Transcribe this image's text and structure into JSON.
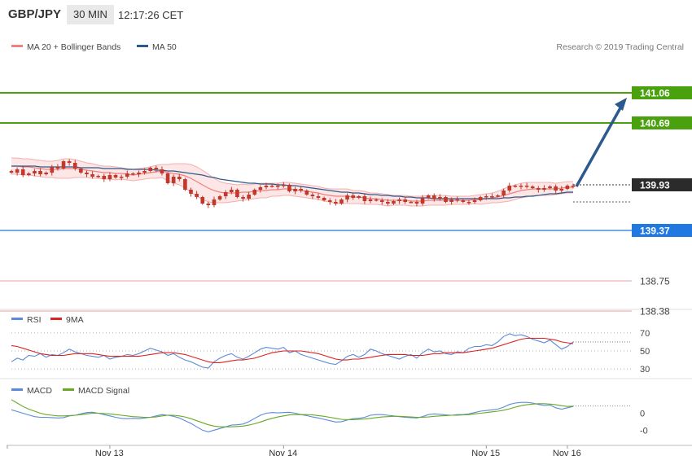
{
  "header": {
    "symbol": "GBP/JPY",
    "timeframe": "30 MIN",
    "time": "12:17:26 CET"
  },
  "legend": {
    "bollinger": "MA 20 + Bollinger Bands",
    "ma50": "MA 50",
    "credit": "Research © 2019 Trading Central",
    "rsi": "RSI",
    "rsi_ma": "9MA",
    "macd": "MACD",
    "macd_signal": "MACD Signal"
  },
  "colors": {
    "up_candle": "#c0392b",
    "down_candle": "#c0392b",
    "bollinger": "#f08080",
    "bollinger_fill": "#fde6e6",
    "ma50": "#2c5a8c",
    "resistance": "#4aa10e",
    "support": "#2178e0",
    "target": "#e04a4a",
    "arrow": "#2c5a8c",
    "rsi": "#5b8bd8",
    "rsi_ma": "#dd2222",
    "macd": "#5b8bd8",
    "macd_signal": "#66aa22"
  },
  "chart_data": [
    {
      "type": "candlestick",
      "title": "GBP/JPY",
      "x_labels": [
        "Nov 13",
        "Nov 14",
        "Nov 15",
        "Nov 16"
      ],
      "ylim": [
        138.25,
        141.2
      ],
      "current_price": 139.93,
      "levels": [
        {
          "value": 141.06,
          "label": "141.06",
          "kind": "resistance"
        },
        {
          "value": 140.69,
          "label": "140.69",
          "kind": "resistance"
        },
        {
          "value": 139.93,
          "label": "139.93",
          "kind": "current"
        },
        {
          "value": 139.37,
          "label": "139.37",
          "kind": "support"
        },
        {
          "value": 138.75,
          "label": "138.75",
          "kind": "target"
        },
        {
          "value": 138.38,
          "label": "138.38",
          "kind": "target"
        }
      ],
      "arrow": {
        "from": 139.93,
        "to": 141.06
      },
      "close": [
        140.08,
        140.12,
        140.05,
        140.07,
        140.1,
        140.06,
        140.08,
        140.15,
        140.13,
        140.22,
        140.2,
        140.13,
        140.08,
        140.06,
        140.03,
        140.04,
        140.0,
        140.05,
        140.02,
        140.03,
        140.07,
        140.06,
        140.08,
        140.1,
        140.14,
        140.12,
        140.07,
        139.95,
        140.03,
        140.0,
        139.87,
        139.82,
        139.78,
        139.7,
        139.68,
        139.75,
        139.79,
        139.84,
        139.87,
        139.78,
        139.76,
        139.81,
        139.87,
        139.9,
        139.92,
        139.91,
        139.92,
        139.93,
        139.85,
        139.88,
        139.86,
        139.81,
        139.79,
        139.77,
        139.74,
        139.72,
        139.7,
        139.75,
        139.8,
        139.77,
        139.79,
        139.73,
        139.75,
        139.74,
        139.72,
        139.7,
        139.73,
        139.75,
        139.72,
        139.72,
        139.7,
        139.77,
        139.8,
        139.76,
        139.78,
        139.72,
        139.75,
        139.74,
        139.72,
        139.72,
        139.74,
        139.78,
        139.79,
        139.79,
        139.8,
        139.86,
        139.92,
        139.91,
        139.92,
        139.91,
        139.89,
        139.87,
        139.89,
        139.91,
        139.86,
        139.88,
        139.92,
        139.92
      ],
      "bollinger_mid": [
        140.16,
        140.16,
        140.15,
        140.15,
        140.14,
        140.13,
        140.12,
        140.12,
        140.12,
        140.13,
        140.13,
        140.13,
        140.12,
        140.11,
        140.1,
        140.09,
        140.08,
        140.08,
        140.07,
        140.07,
        140.06,
        140.05,
        140.06,
        140.07,
        140.08,
        140.09,
        140.1,
        140.08,
        140.07,
        140.06,
        140.04,
        140.01,
        139.97,
        139.93,
        139.89,
        139.86,
        139.84,
        139.83,
        139.83,
        139.83,
        139.84,
        139.84,
        139.85,
        139.86,
        139.86,
        139.87,
        139.87,
        139.88,
        139.88,
        139.87,
        139.86,
        139.85,
        139.84,
        139.83,
        139.81,
        139.8,
        139.79,
        139.79,
        139.79,
        139.78,
        139.78,
        139.77,
        139.76,
        139.76,
        139.75,
        139.74,
        139.74,
        139.74,
        139.74,
        139.73,
        139.73,
        139.73,
        139.74,
        139.74,
        139.74,
        139.74,
        139.74,
        139.74,
        139.74,
        139.74,
        139.75,
        139.75,
        139.76,
        139.77,
        139.78,
        139.8,
        139.82,
        139.84,
        139.86,
        139.87,
        139.88,
        139.88,
        139.88,
        139.88,
        139.88,
        139.89,
        139.9,
        139.9
      ],
      "bollinger_width": [
        0.1,
        0.1,
        0.1,
        0.1,
        0.1,
        0.1,
        0.1,
        0.1,
        0.11,
        0.12,
        0.12,
        0.11,
        0.1,
        0.09,
        0.09,
        0.08,
        0.08,
        0.08,
        0.08,
        0.07,
        0.07,
        0.07,
        0.07,
        0.07,
        0.07,
        0.08,
        0.08,
        0.1,
        0.12,
        0.13,
        0.15,
        0.17,
        0.18,
        0.18,
        0.17,
        0.15,
        0.13,
        0.12,
        0.11,
        0.1,
        0.1,
        0.09,
        0.09,
        0.09,
        0.09,
        0.08,
        0.08,
        0.08,
        0.08,
        0.08,
        0.08,
        0.08,
        0.08,
        0.08,
        0.08,
        0.08,
        0.09,
        0.09,
        0.09,
        0.08,
        0.08,
        0.08,
        0.07,
        0.07,
        0.07,
        0.07,
        0.06,
        0.06,
        0.06,
        0.06,
        0.06,
        0.06,
        0.06,
        0.06,
        0.06,
        0.06,
        0.05,
        0.05,
        0.05,
        0.05,
        0.05,
        0.06,
        0.06,
        0.06,
        0.07,
        0.08,
        0.09,
        0.09,
        0.09,
        0.09,
        0.08,
        0.08,
        0.08,
        0.08,
        0.07,
        0.07,
        0.07,
        0.07
      ],
      "ma50": [
        140.16,
        140.16,
        140.16,
        140.16,
        140.16,
        140.15,
        140.15,
        140.15,
        140.15,
        140.15,
        140.15,
        140.15,
        140.14,
        140.14,
        140.14,
        140.14,
        140.13,
        140.13,
        140.13,
        140.13,
        140.12,
        140.12,
        140.12,
        140.12,
        140.12,
        140.11,
        140.11,
        140.1,
        140.1,
        140.09,
        140.08,
        140.07,
        140.06,
        140.05,
        140.03,
        140.02,
        140.0,
        139.99,
        139.98,
        139.97,
        139.96,
        139.95,
        139.95,
        139.94,
        139.94,
        139.94,
        139.93,
        139.93,
        139.92,
        139.92,
        139.91,
        139.9,
        139.89,
        139.88,
        139.87,
        139.86,
        139.85,
        139.84,
        139.84,
        139.83,
        139.83,
        139.82,
        139.81,
        139.81,
        139.8,
        139.8,
        139.79,
        139.79,
        139.78,
        139.78,
        139.77,
        139.77,
        139.77,
        139.76,
        139.76,
        139.76,
        139.76,
        139.76,
        139.76,
        139.76,
        139.76,
        139.76,
        139.76,
        139.76,
        139.76,
        139.77,
        139.77,
        139.78,
        139.78,
        139.79,
        139.79,
        139.8,
        139.81,
        139.82,
        139.82,
        139.83,
        139.84,
        139.84
      ]
    },
    {
      "type": "line",
      "title": "RSI",
      "ylim": [
        22,
        78
      ],
      "yticks": [
        30,
        50,
        70
      ],
      "series": [
        {
          "name": "RSI",
          "values": [
            38,
            42,
            40,
            45,
            44,
            47,
            43,
            46,
            45,
            48,
            52,
            49,
            47,
            45,
            44,
            43,
            45,
            41,
            43,
            44,
            46,
            45,
            47,
            50,
            53,
            51,
            49,
            45,
            47,
            43,
            40,
            38,
            35,
            32,
            31,
            38,
            42,
            45,
            47,
            43,
            41,
            44,
            48,
            52,
            54,
            53,
            52,
            54,
            48,
            50,
            46,
            44,
            42,
            40,
            38,
            36,
            35,
            39,
            44,
            46,
            43,
            46,
            52,
            50,
            47,
            45,
            43,
            41,
            44,
            46,
            42,
            48,
            52,
            49,
            50,
            47,
            46,
            49,
            48,
            53,
            55,
            55,
            57,
            56,
            60,
            66,
            69,
            67,
            68,
            66,
            63,
            61,
            59,
            62,
            57,
            52,
            55,
            60
          ]
        },
        {
          "name": "9MA",
          "values": [
            56,
            55,
            53,
            51,
            49,
            47,
            46,
            45,
            45,
            45,
            46,
            47,
            47,
            47,
            47,
            46,
            45,
            44,
            44,
            44,
            44,
            44,
            44,
            45,
            46,
            47,
            48,
            48,
            48,
            47,
            46,
            44,
            42,
            40,
            38,
            37,
            37,
            38,
            39,
            40,
            40,
            41,
            42,
            44,
            46,
            48,
            49,
            50,
            50,
            50,
            50,
            49,
            48,
            47,
            45,
            43,
            41,
            40,
            40,
            41,
            41,
            42,
            43,
            44,
            45,
            46,
            46,
            46,
            46,
            45,
            45,
            45,
            46,
            47,
            47,
            48,
            48,
            48,
            48,
            49,
            50,
            51,
            52,
            53,
            55,
            57,
            59,
            61,
            63,
            64,
            64,
            64,
            64,
            63,
            62,
            60,
            59,
            58
          ]
        }
      ]
    },
    {
      "type": "line",
      "title": "MACD",
      "ylim": [
        -0.09,
        0.09
      ],
      "yticks": [
        0,
        -0.05
      ],
      "ytick_labels": [
        "0",
        "-0"
      ],
      "series": [
        {
          "name": "MACD",
          "values": [
            0.01,
            0.005,
            0,
            -0.005,
            -0.01,
            -0.012,
            -0.012,
            -0.013,
            -0.014,
            -0.013,
            -0.008,
            -0.006,
            -0.002,
            0.002,
            0.003,
            0.0,
            -0.004,
            -0.008,
            -0.012,
            -0.015,
            -0.016,
            -0.015,
            -0.016,
            -0.014,
            -0.012,
            -0.008,
            -0.004,
            -0.006,
            -0.009,
            -0.014,
            -0.022,
            -0.03,
            -0.04,
            -0.05,
            -0.055,
            -0.05,
            -0.045,
            -0.04,
            -0.035,
            -0.034,
            -0.032,
            -0.025,
            -0.015,
            -0.006,
            0.0,
            0.002,
            0.001,
            0.002,
            0.003,
            0.0,
            -0.004,
            -0.007,
            -0.011,
            -0.014,
            -0.018,
            -0.022,
            -0.026,
            -0.025,
            -0.02,
            -0.016,
            -0.015,
            -0.012,
            -0.006,
            -0.004,
            -0.004,
            -0.006,
            -0.008,
            -0.01,
            -0.012,
            -0.013,
            -0.014,
            -0.01,
            -0.004,
            -0.002,
            -0.003,
            -0.005,
            -0.006,
            -0.004,
            -0.004,
            -0.002,
            0.002,
            0.006,
            0.008,
            0.01,
            0.012,
            0.018,
            0.026,
            0.03,
            0.032,
            0.032,
            0.03,
            0.026,
            0.023,
            0.024,
            0.016,
            0.012,
            0.016,
            0.02
          ]
        },
        {
          "name": "MACD Signal",
          "values": [
            0.04,
            0.03,
            0.02,
            0.012,
            0.006,
            0.0,
            -0.004,
            -0.006,
            -0.008,
            -0.008,
            -0.007,
            -0.006,
            -0.004,
            -0.002,
            0.0,
            0.0,
            -0.001,
            -0.002,
            -0.004,
            -0.006,
            -0.008,
            -0.01,
            -0.011,
            -0.012,
            -0.012,
            -0.011,
            -0.008,
            -0.006,
            -0.006,
            -0.008,
            -0.011,
            -0.016,
            -0.022,
            -0.028,
            -0.034,
            -0.038,
            -0.04,
            -0.04,
            -0.04,
            -0.039,
            -0.038,
            -0.035,
            -0.031,
            -0.026,
            -0.02,
            -0.015,
            -0.011,
            -0.008,
            -0.005,
            -0.004,
            -0.004,
            -0.004,
            -0.005,
            -0.007,
            -0.009,
            -0.012,
            -0.015,
            -0.018,
            -0.019,
            -0.019,
            -0.018,
            -0.017,
            -0.015,
            -0.013,
            -0.011,
            -0.01,
            -0.009,
            -0.009,
            -0.01,
            -0.011,
            -0.012,
            -0.012,
            -0.011,
            -0.009,
            -0.008,
            -0.007,
            -0.006,
            -0.006,
            -0.005,
            -0.004,
            -0.002,
            0.0,
            0.002,
            0.004,
            0.006,
            0.009,
            0.013,
            0.018,
            0.022,
            0.025,
            0.027,
            0.028,
            0.028,
            0.027,
            0.025,
            0.022,
            0.02,
            0.021
          ]
        }
      ]
    }
  ]
}
